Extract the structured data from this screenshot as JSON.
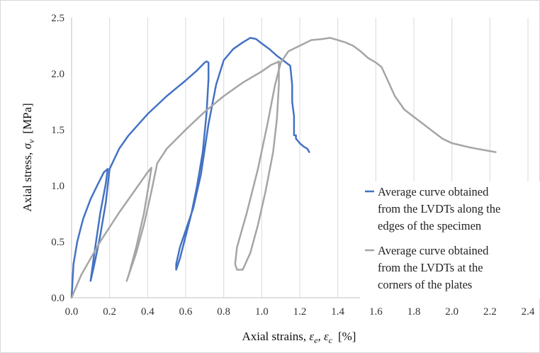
{
  "chart_data": {
    "type": "line",
    "title": "",
    "xlabel": {
      "main": "Axial strains, ",
      "sym1": "ε",
      "sub1": "e",
      "sep": ", ",
      "sym2": "ε",
      "sub2": "c",
      "unit": "[%]"
    },
    "ylabel": {
      "main": "Axial stress, ",
      "sym": "σ",
      "sub": "v",
      "unit": "[MPa]"
    },
    "xlim": [
      0,
      2.4
    ],
    "ylim": [
      0,
      2.5
    ],
    "xticks": [
      0.0,
      0.2,
      0.4,
      0.6,
      0.8,
      1.0,
      1.2,
      1.4,
      1.6,
      1.8,
      2.0,
      2.2,
      2.4
    ],
    "yticks": [
      0.0,
      0.5,
      1.0,
      1.5,
      2.0,
      2.5
    ],
    "xtick_labels": [
      "0.0",
      "0.2",
      "0.4",
      "0.6",
      "0.8",
      "1.0",
      "1.2",
      "1.4",
      "1.6",
      "1.8",
      "2.0",
      "2.2",
      "2.4"
    ],
    "ytick_labels": [
      "0.0",
      "0.5",
      "1.0",
      "1.5",
      "2.0",
      "2.5"
    ],
    "grid": "vertical",
    "legend_position": "right",
    "series": [
      {
        "name_lines": [
          "Average curve obtained",
          "from the LVDTs along the",
          "edges of the specimen"
        ],
        "color": "#4472c4",
        "x": [
          0,
          0.01,
          0.03,
          0.06,
          0.1,
          0.14,
          0.17,
          0.19,
          0.18,
          0.15,
          0.12,
          0.1,
          0.12,
          0.15,
          0.18,
          0.2,
          0.25,
          0.3,
          0.4,
          0.5,
          0.6,
          0.66,
          0.7,
          0.71,
          0.72,
          0.72,
          0.71,
          0.69,
          0.66,
          0.63,
          0.6,
          0.57,
          0.55,
          0.55,
          0.57,
          0.6,
          0.64,
          0.68,
          0.72,
          0.76,
          0.8,
          0.85,
          0.9,
          0.94,
          0.97,
          1.0,
          1.04,
          1.08,
          1.12,
          1.15,
          1.16,
          1.16,
          1.17,
          1.17,
          1.18,
          1.18,
          1.2,
          1.22,
          1.24,
          1.25
        ],
        "y": [
          0,
          0.3,
          0.5,
          0.7,
          0.88,
          1.02,
          1.12,
          1.15,
          1.02,
          0.75,
          0.4,
          0.15,
          0.3,
          0.55,
          0.85,
          1.15,
          1.33,
          1.45,
          1.64,
          1.8,
          1.94,
          2.03,
          2.1,
          2.11,
          2.1,
          1.95,
          1.65,
          1.3,
          1.0,
          0.75,
          0.55,
          0.35,
          0.25,
          0.3,
          0.45,
          0.6,
          0.8,
          1.1,
          1.55,
          1.9,
          2.12,
          2.22,
          2.28,
          2.32,
          2.31,
          2.27,
          2.22,
          2.16,
          2.11,
          2.07,
          1.9,
          1.75,
          1.62,
          1.45,
          1.45,
          1.42,
          1.38,
          1.35,
          1.33,
          1.3
        ]
      },
      {
        "name_lines": [
          "Average curve obtained",
          "from the LVDTs at the",
          "corners of the plates"
        ],
        "color": "#a5a5a5",
        "x": [
          0,
          0.05,
          0.1,
          0.15,
          0.2,
          0.25,
          0.3,
          0.35,
          0.4,
          0.42,
          0.41,
          0.38,
          0.34,
          0.3,
          0.29,
          0.3,
          0.34,
          0.38,
          0.42,
          0.45,
          0.5,
          0.6,
          0.7,
          0.8,
          0.9,
          1.0,
          1.05,
          1.08,
          1.09,
          1.09,
          1.08,
          1.06,
          1.02,
          0.98,
          0.94,
          0.9,
          0.87,
          0.86,
          0.87,
          0.92,
          0.98,
          1.03,
          1.07,
          1.1,
          1.14,
          1.2,
          1.26,
          1.32,
          1.36,
          1.4,
          1.44,
          1.48,
          1.52,
          1.56,
          1.6,
          1.63,
          1.66,
          1.7,
          1.75,
          1.85,
          1.95,
          2.0,
          2.1,
          2.23
        ],
        "y": [
          0,
          0.2,
          0.35,
          0.5,
          0.63,
          0.76,
          0.88,
          1.0,
          1.12,
          1.16,
          1.05,
          0.75,
          0.45,
          0.2,
          0.15,
          0.2,
          0.4,
          0.65,
          0.95,
          1.2,
          1.33,
          1.5,
          1.66,
          1.8,
          1.92,
          2.02,
          2.08,
          2.1,
          2.11,
          1.9,
          1.6,
          1.3,
          0.95,
          0.65,
          0.4,
          0.25,
          0.25,
          0.3,
          0.45,
          0.75,
          1.15,
          1.55,
          1.9,
          2.1,
          2.2,
          2.25,
          2.3,
          2.31,
          2.32,
          2.3,
          2.28,
          2.25,
          2.2,
          2.14,
          2.1,
          2.06,
          1.95,
          1.8,
          1.68,
          1.55,
          1.42,
          1.38,
          1.34,
          1.3
        ]
      }
    ]
  }
}
